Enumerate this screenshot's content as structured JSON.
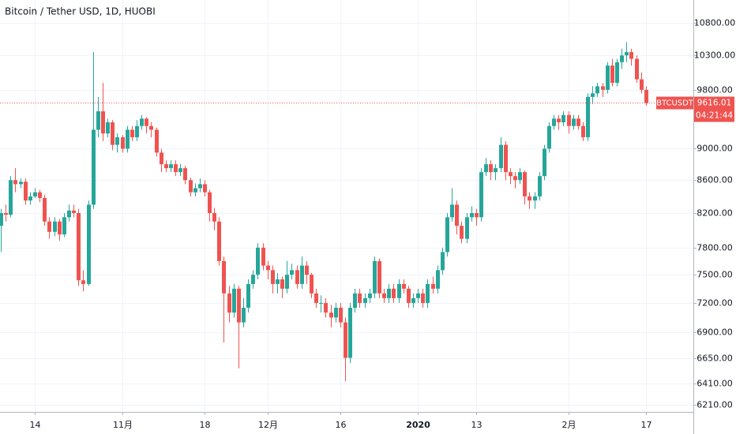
{
  "chart_data": {
    "type": "candlestick",
    "title": "Bitcoin / Tether USD, 1D, HUOBI",
    "log_scale": true,
    "grid": true,
    "countdown": "04:21:44",
    "x": [
      0,
      1,
      2,
      3,
      4,
      5,
      6,
      7,
      8,
      9,
      10,
      11,
      12,
      13,
      14,
      15,
      16,
      17,
      18,
      19,
      20,
      21,
      22,
      23,
      24,
      25,
      26,
      27,
      28,
      29,
      30,
      31,
      32,
      33,
      34,
      35,
      36,
      37,
      38,
      39,
      40,
      41,
      42,
      43,
      44,
      45,
      46,
      47,
      48,
      49,
      50,
      51,
      52,
      53,
      54,
      55,
      56,
      57,
      58,
      59,
      60,
      61,
      62,
      63,
      64,
      65,
      66,
      67,
      68,
      69,
      70,
      71,
      72,
      73,
      74,
      75,
      76,
      77,
      78,
      79,
      80,
      81,
      82,
      83,
      84,
      85,
      86,
      87,
      88,
      89,
      90,
      91,
      92,
      93,
      94,
      95,
      96,
      97,
      98,
      99,
      100,
      101,
      102,
      103,
      104,
      105,
      106,
      107,
      108,
      109,
      110,
      111,
      112,
      113,
      114,
      115,
      116,
      117,
      118,
      119,
      120,
      121,
      122,
      123,
      124,
      125,
      126,
      127,
      128,
      129,
      130,
      131,
      132,
      133
    ],
    "xlim": [
      -0.16,
      142.8
    ],
    "xticks": [
      {
        "value": 7,
        "label": "14"
      },
      {
        "value": 25,
        "label": "11月"
      },
      {
        "value": 42,
        "label": "18"
      },
      {
        "value": 55,
        "label": "12月"
      },
      {
        "value": 70,
        "label": "16"
      },
      {
        "value": 86,
        "label": "2020"
      },
      {
        "value": 98,
        "label": "13"
      },
      {
        "value": 117,
        "label": "2月"
      },
      {
        "value": 133,
        "label": "17"
      }
    ],
    "ylim": [
      6150,
      11160
    ],
    "yticks": [
      {
        "value": 6210,
        "label": "6210.00"
      },
      {
        "value": 6410,
        "label": "6410.00"
      },
      {
        "value": 6650,
        "label": "6650.00"
      },
      {
        "value": 6900,
        "label": "6900.00"
      },
      {
        "value": 7200,
        "label": "7200.00"
      },
      {
        "value": 7500,
        "label": "7500.00"
      },
      {
        "value": 7800,
        "label": "7800.00"
      },
      {
        "value": 8200,
        "label": "8200.00"
      },
      {
        "value": 8600,
        "label": "8600.00"
      },
      {
        "value": 9000,
        "label": "9000.00"
      },
      {
        "value": 9800,
        "label": "9800.00"
      },
      {
        "value": 10300,
        "label": "10300.00"
      },
      {
        "value": 10800,
        "label": "10800.00"
      }
    ],
    "series": [
      {
        "name": "BTCUSDT",
        "up_color": "#26a69a",
        "down_color": "#ef5350",
        "open": [
          8050,
          8200,
          8180,
          8600,
          8550,
          8580,
          8350,
          8400,
          8450,
          8380,
          8100,
          7980,
          8100,
          7950,
          8150,
          8230,
          8200,
          7440,
          7400,
          8300,
          9250,
          9500,
          9200,
          9350,
          9050,
          9150,
          9000,
          9250,
          9150,
          9300,
          9400,
          9300,
          9250,
          8950,
          8800,
          8750,
          8800,
          8700,
          8750,
          8600,
          8450,
          8500,
          8550,
          8450,
          8200,
          8100,
          7650,
          7300,
          7100,
          7350,
          7000,
          7150,
          7400,
          7500,
          7800,
          7600,
          7550,
          7400,
          7450,
          7350,
          7500,
          7550,
          7400,
          7600,
          7500,
          7300,
          7200,
          7200,
          7100,
          7050,
          7150,
          7000,
          6650,
          7150,
          7300,
          7200,
          7250,
          7300,
          7650,
          7300,
          7250,
          7350,
          7250,
          7400,
          7350,
          7200,
          7250,
          7300,
          7200,
          7400,
          7350,
          7550,
          7750,
          8150,
          8300,
          8050,
          7900,
          8150,
          8200,
          8150,
          8700,
          8800,
          8700,
          8750,
          9050,
          8700,
          8650,
          8600,
          8700,
          8400,
          8350,
          8400,
          8650,
          9000,
          9300,
          9400,
          9350,
          9450,
          9300,
          9400,
          9300,
          9150,
          9700,
          9750,
          9850,
          9800,
          10150,
          9900,
          10200,
          10300,
          10350,
          10250,
          9950,
          9800
        ],
        "high": [
          8250,
          8300,
          8650,
          8750,
          8620,
          8620,
          8450,
          8500,
          8480,
          8420,
          8150,
          8150,
          8130,
          8200,
          8300,
          8300,
          8250,
          7550,
          8350,
          10350,
          9700,
          9900,
          9400,
          9380,
          9200,
          9180,
          9300,
          9300,
          9380,
          9450,
          9420,
          9350,
          9280,
          9000,
          8850,
          8850,
          8850,
          8800,
          8780,
          8630,
          8560,
          8620,
          8600,
          8480,
          8260,
          8150,
          7700,
          7380,
          7400,
          7380,
          7250,
          7450,
          7550,
          7850,
          7850,
          7650,
          7600,
          7520,
          7480,
          7650,
          7620,
          7600,
          7700,
          7650,
          7520,
          7350,
          7280,
          7250,
          7180,
          7200,
          7200,
          7050,
          7200,
          7350,
          7350,
          7300,
          7350,
          7700,
          7680,
          7350,
          7400,
          7400,
          7450,
          7450,
          7380,
          7300,
          7350,
          7350,
          7450,
          7480,
          7600,
          7800,
          8200,
          8500,
          8350,
          8100,
          8200,
          8280,
          8250,
          8750,
          8880,
          8850,
          8800,
          9150,
          9100,
          8750,
          8700,
          8750,
          8720,
          8450,
          8450,
          8700,
          9050,
          9350,
          9450,
          9450,
          9500,
          9500,
          9450,
          9450,
          9350,
          9750,
          9850,
          9900,
          9900,
          10200,
          10250,
          10250,
          10400,
          10500,
          10400,
          10300,
          10050,
          9850
        ],
        "low": [
          7750,
          8100,
          8150,
          8450,
          8500,
          8300,
          8300,
          8380,
          8330,
          8050,
          7900,
          7930,
          7880,
          7920,
          8100,
          8150,
          7380,
          7320,
          7380,
          8250,
          9150,
          9100,
          9150,
          8980,
          8950,
          8950,
          8950,
          9100,
          9100,
          9250,
          9200,
          9150,
          8900,
          8700,
          8700,
          8700,
          8650,
          8650,
          8550,
          8400,
          8400,
          8450,
          8400,
          8100,
          8000,
          7600,
          6800,
          7000,
          7050,
          6550,
          6950,
          7100,
          7350,
          7450,
          7550,
          7450,
          7300,
          7300,
          7250,
          7300,
          7450,
          7350,
          7350,
          7400,
          7250,
          7150,
          7100,
          7050,
          6950,
          7000,
          6950,
          6430,
          6600,
          7100,
          7150,
          7150,
          7200,
          7250,
          7250,
          7200,
          7200,
          7200,
          7200,
          7300,
          7150,
          7150,
          7200,
          7150,
          7150,
          7300,
          7300,
          7500,
          7700,
          8100,
          7950,
          7850,
          7850,
          8100,
          8050,
          8100,
          8650,
          8600,
          8600,
          8700,
          8600,
          8550,
          8500,
          8550,
          8300,
          8250,
          8250,
          8350,
          8600,
          8950,
          9250,
          9250,
          9300,
          9200,
          9250,
          9250,
          9100,
          9100,
          9600,
          9700,
          9700,
          9750,
          9850,
          9850,
          10100,
          10200,
          10150,
          9900,
          9750,
          9580
        ],
        "close": [
          8200,
          8180,
          8600,
          8550,
          8580,
          8350,
          8400,
          8450,
          8380,
          8100,
          7980,
          8100,
          7950,
          8150,
          8230,
          8200,
          7440,
          7400,
          8300,
          9250,
          9500,
          9200,
          9350,
          9050,
          9150,
          9000,
          9250,
          9150,
          9300,
          9400,
          9300,
          9250,
          8950,
          8800,
          8750,
          8800,
          8700,
          8750,
          8600,
          8450,
          8500,
          8550,
          8450,
          8200,
          8100,
          7650,
          7300,
          7100,
          7350,
          7000,
          7150,
          7400,
          7500,
          7800,
          7600,
          7550,
          7400,
          7450,
          7350,
          7500,
          7550,
          7400,
          7600,
          7500,
          7300,
          7200,
          7200,
          7100,
          7050,
          7150,
          7000,
          6650,
          7150,
          7300,
          7200,
          7250,
          7300,
          7650,
          7300,
          7250,
          7350,
          7250,
          7400,
          7350,
          7200,
          7250,
          7300,
          7200,
          7400,
          7350,
          7550,
          7750,
          8150,
          8300,
          8050,
          7900,
          8150,
          8200,
          8150,
          8700,
          8800,
          8700,
          8750,
          9050,
          8700,
          8650,
          8600,
          8700,
          8400,
          8350,
          8400,
          8650,
          9000,
          9300,
          9400,
          9350,
          9450,
          9300,
          9400,
          9300,
          9150,
          9700,
          9750,
          9850,
          9800,
          10150,
          9900,
          10200,
          10300,
          10350,
          10250,
          9950,
          9800,
          9616.01
        ]
      }
    ]
  }
}
